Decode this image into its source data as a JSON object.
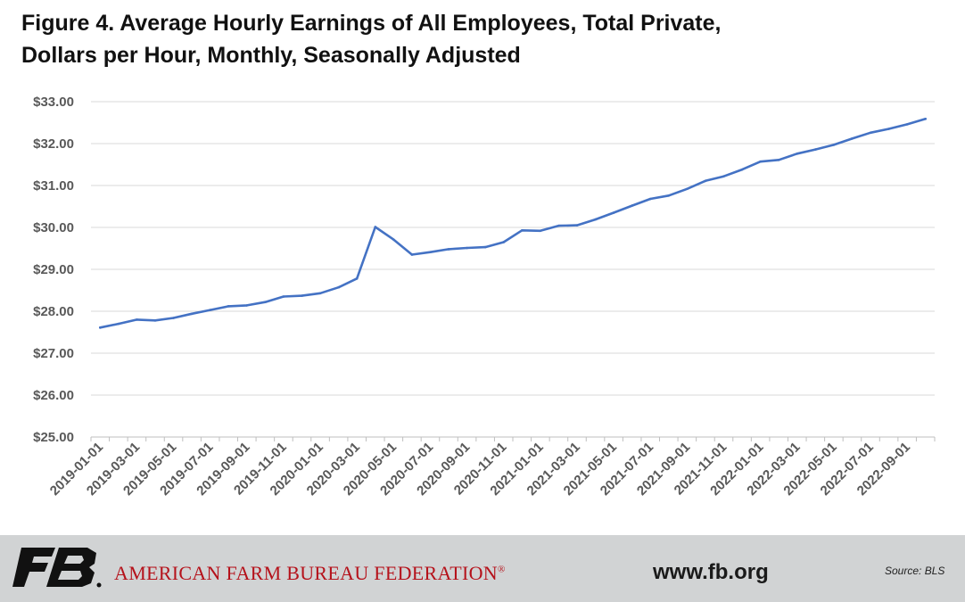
{
  "title_line1": "Figure 4. Average Hourly Earnings of All Employees, Total Private,",
  "title_line2": "Dollars per Hour, Monthly, Seasonally Adjusted",
  "footer": {
    "org_name": "AMERICAN FARM BUREAU FEDERATION",
    "org_mark": "®",
    "website": "www.fb.org",
    "source": "Source: BLS",
    "logo_text": "FB",
    "logo_color": "#111111",
    "accent_color": "#b5121b",
    "background": "#d1d3d4"
  },
  "chart_data": {
    "type": "line",
    "title": "Figure 4. Average Hourly Earnings of All Employees, Total Private, Dollars per Hour, Monthly, Seasonally Adjusted",
    "xlabel": "",
    "ylabel": "",
    "ylim": [
      25,
      33
    ],
    "yticks": [
      25,
      26,
      27,
      28,
      29,
      30,
      31,
      32,
      33
    ],
    "ytick_labels": [
      "$25.00",
      "$26.00",
      "$27.00",
      "$28.00",
      "$29.00",
      "$30.00",
      "$31.00",
      "$32.00",
      "$33.00"
    ],
    "grid": true,
    "legend": "none",
    "line_color": "#4472c4",
    "x_tick_labels": [
      "2019-01-01",
      "2019-03-01",
      "2019-05-01",
      "2019-07-01",
      "2019-09-01",
      "2019-11-01",
      "2020-01-01",
      "2020-03-01",
      "2020-05-01",
      "2020-07-01",
      "2020-09-01",
      "2020-11-01",
      "2021-01-01",
      "2021-03-01",
      "2021-05-01",
      "2021-07-01",
      "2021-09-01",
      "2021-11-01",
      "2022-01-01",
      "2022-03-01",
      "2022-05-01",
      "2022-07-01",
      "2022-09-01"
    ],
    "x": [
      "2019-01-01",
      "2019-02-01",
      "2019-03-01",
      "2019-04-01",
      "2019-05-01",
      "2019-06-01",
      "2019-07-01",
      "2019-08-01",
      "2019-09-01",
      "2019-10-01",
      "2019-11-01",
      "2019-12-01",
      "2020-01-01",
      "2020-02-01",
      "2020-03-01",
      "2020-04-01",
      "2020-05-01",
      "2020-06-01",
      "2020-07-01",
      "2020-08-01",
      "2020-09-01",
      "2020-10-01",
      "2020-11-01",
      "2020-12-01",
      "2021-01-01",
      "2021-02-01",
      "2021-03-01",
      "2021-04-01",
      "2021-05-01",
      "2021-06-01",
      "2021-07-01",
      "2021-08-01",
      "2021-09-01",
      "2021-10-01",
      "2021-11-01",
      "2021-12-01",
      "2022-01-01",
      "2022-02-01",
      "2022-03-01",
      "2022-04-01",
      "2022-05-01",
      "2022-06-01",
      "2022-07-01",
      "2022-08-01",
      "2022-09-01",
      "2022-10-01"
    ],
    "series": [
      {
        "values": [
          27.61,
          27.7,
          27.8,
          27.78,
          27.84,
          27.94,
          28.03,
          28.12,
          28.14,
          28.22,
          28.35,
          28.37,
          28.43,
          28.57,
          28.78,
          30.01,
          29.71,
          29.35,
          29.41,
          29.48,
          29.51,
          29.53,
          29.65,
          29.93,
          29.92,
          30.04,
          30.05,
          30.19,
          30.35,
          30.52,
          30.68,
          30.76,
          30.92,
          31.11,
          31.22,
          31.38,
          31.57,
          31.61,
          31.76,
          31.86,
          31.97,
          32.12,
          32.26,
          32.35,
          32.46,
          32.59
        ]
      }
    ]
  }
}
